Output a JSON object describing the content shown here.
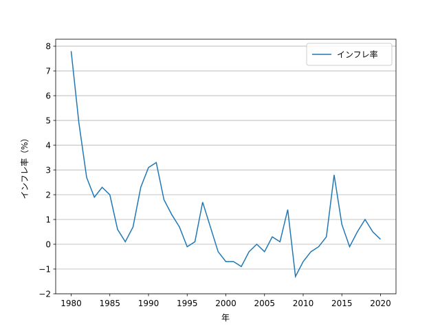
{
  "chart_data": {
    "type": "line",
    "x": [
      1980,
      1981,
      1982,
      1983,
      1984,
      1985,
      1986,
      1987,
      1988,
      1989,
      1990,
      1991,
      1992,
      1993,
      1994,
      1995,
      1996,
      1997,
      1998,
      1999,
      2000,
      2001,
      2002,
      2003,
      2004,
      2005,
      2006,
      2007,
      2008,
      2009,
      2010,
      2011,
      2012,
      2013,
      2014,
      2015,
      2016,
      2017,
      2018,
      2019,
      2020
    ],
    "series": [
      {
        "name": "インフレ率",
        "color": "#1f77b4",
        "values": [
          7.8,
          4.9,
          2.7,
          1.9,
          2.3,
          2.0,
          0.6,
          0.1,
          0.7,
          2.3,
          3.1,
          3.3,
          1.8,
          1.2,
          0.7,
          -0.1,
          0.1,
          1.7,
          0.7,
          -0.3,
          -0.7,
          -0.7,
          -0.9,
          -0.3,
          0.0,
          -0.3,
          0.3,
          0.1,
          1.4,
          -1.3,
          -0.7,
          -0.3,
          -0.1,
          0.3,
          2.8,
          0.8,
          -0.1,
          0.5,
          1.0,
          0.5,
          0.2
        ]
      }
    ],
    "xlabel": "年",
    "ylabel": "インフレ率（%）",
    "xlim": [
      1978,
      2022
    ],
    "ylim": [
      -2,
      8.28
    ],
    "xticks": [
      1980,
      1985,
      1990,
      1995,
      2000,
      2005,
      2010,
      2015,
      2020
    ],
    "yticks": [
      {
        "value": -2,
        "label": "−2"
      },
      {
        "value": -1,
        "label": "−1"
      },
      0,
      1,
      2,
      3,
      4,
      5,
      6,
      7,
      8
    ],
    "grid": "y",
    "legend": "upper right"
  }
}
